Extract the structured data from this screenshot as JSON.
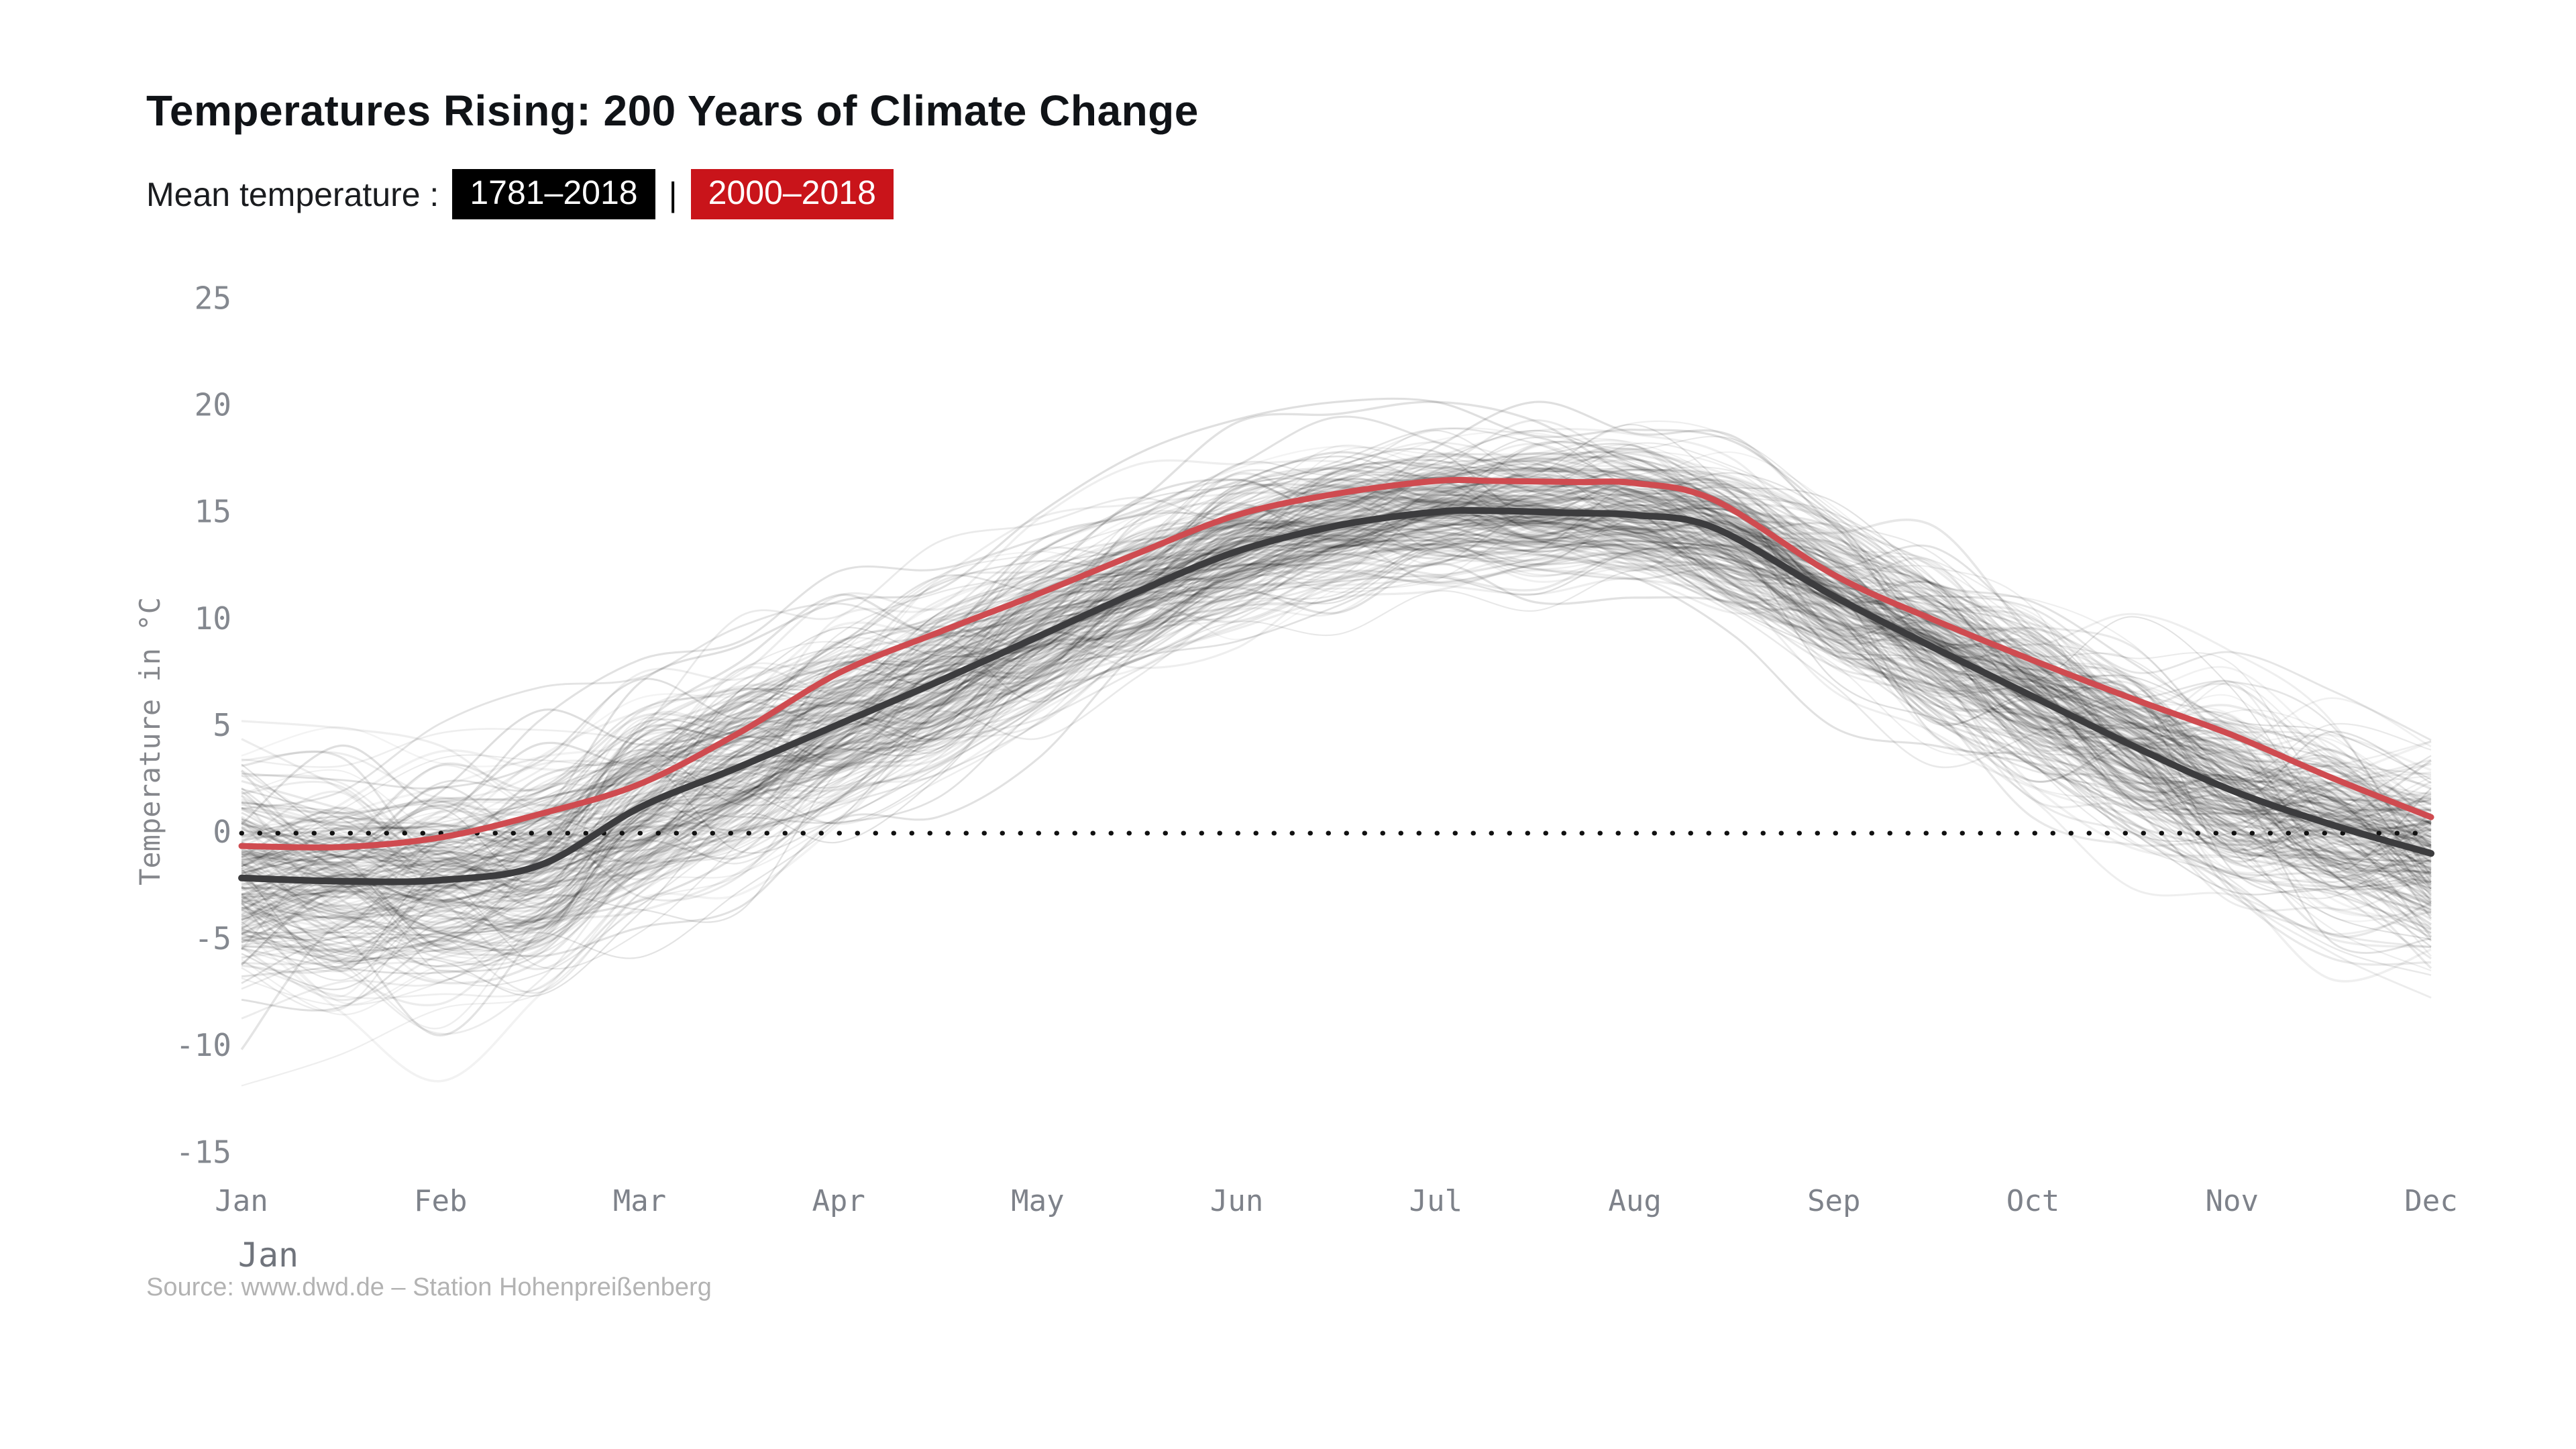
{
  "header": {
    "title": "Temperatures Rising: 200 Years of Climate Change",
    "subtitle_label": "Mean temperature :",
    "badge_all": {
      "label": "1781–2018",
      "bg": "#000000",
      "fg": "#ffffff"
    },
    "separator": "|",
    "badge_recent": {
      "label": "2000–2018",
      "bg": "#c9141a",
      "fg": "#ffffff"
    }
  },
  "source_note": "Source: www.dwd.de – Station Hohenpreißenberg",
  "chart_data": {
    "type": "line",
    "title": "Temperatures Rising: 200 Years of Climate Change",
    "ylabel": "Temperature in °C",
    "x_categories": [
      "Jan",
      "Feb",
      "Mar",
      "Apr",
      "May",
      "Jun",
      "Jul",
      "Aug",
      "Sep",
      "Oct",
      "Nov",
      "Dec"
    ],
    "x_extra_label": "Jan",
    "y_ticks": [
      25,
      20,
      15,
      10,
      5,
      0,
      -5,
      -10,
      -15
    ],
    "ylim": [
      -15,
      25
    ],
    "zero_line": 0,
    "grid": false,
    "legend_position": "top-badges",
    "series": [
      {
        "name": "Mean temperature 1781–2018",
        "color": "#3c3c3e",
        "width": 10,
        "x": [
          0,
          0.5,
          1,
          1.5,
          2,
          2.5,
          3,
          3.5,
          4,
          4.5,
          5,
          5.5,
          6,
          6.3,
          6.7,
          7,
          7.4,
          8,
          8.5,
          9,
          9.5,
          10,
          10.5,
          11
        ],
        "values": [
          -2.1,
          -2.25,
          -2.2,
          -1.5,
          1.2,
          3.1,
          5.1,
          7.1,
          9.2,
          11.3,
          13.2,
          14.4,
          15.05,
          15.1,
          15.0,
          14.9,
          14.3,
          11.1,
          8.7,
          6.4,
          4.1,
          2.0,
          0.4,
          -0.95
        ]
      },
      {
        "name": "Mean temperature 2000–2018",
        "color": "#cf4b50",
        "width": 9,
        "x": [
          0,
          0.5,
          1,
          1.5,
          2,
          2.5,
          3,
          3.5,
          4,
          4.5,
          5,
          5.5,
          6,
          6.3,
          6.7,
          7,
          7.4,
          8,
          8.5,
          9,
          9.5,
          10,
          10.5,
          11
        ],
        "values": [
          -0.6,
          -0.65,
          -0.2,
          0.9,
          2.3,
          4.7,
          7.5,
          9.4,
          11.2,
          13.1,
          14.9,
          15.9,
          16.5,
          16.5,
          16.45,
          16.4,
          15.6,
          12.1,
          10.0,
          8.1,
          6.3,
          4.6,
          2.6,
          0.75
        ]
      }
    ],
    "background_series": {
      "description": "individual smoothed year curves 1781–2018",
      "count": 238,
      "color": "#000000",
      "min_opacity": 0.045,
      "max_opacity": 0.13,
      "winter_spread_deg": 3.4,
      "summer_spread_deg": 1.8,
      "approx_envelope": {
        "winter": [
          -12.5,
          5.5
        ],
        "summer": [
          10.5,
          19.5
        ]
      }
    }
  }
}
